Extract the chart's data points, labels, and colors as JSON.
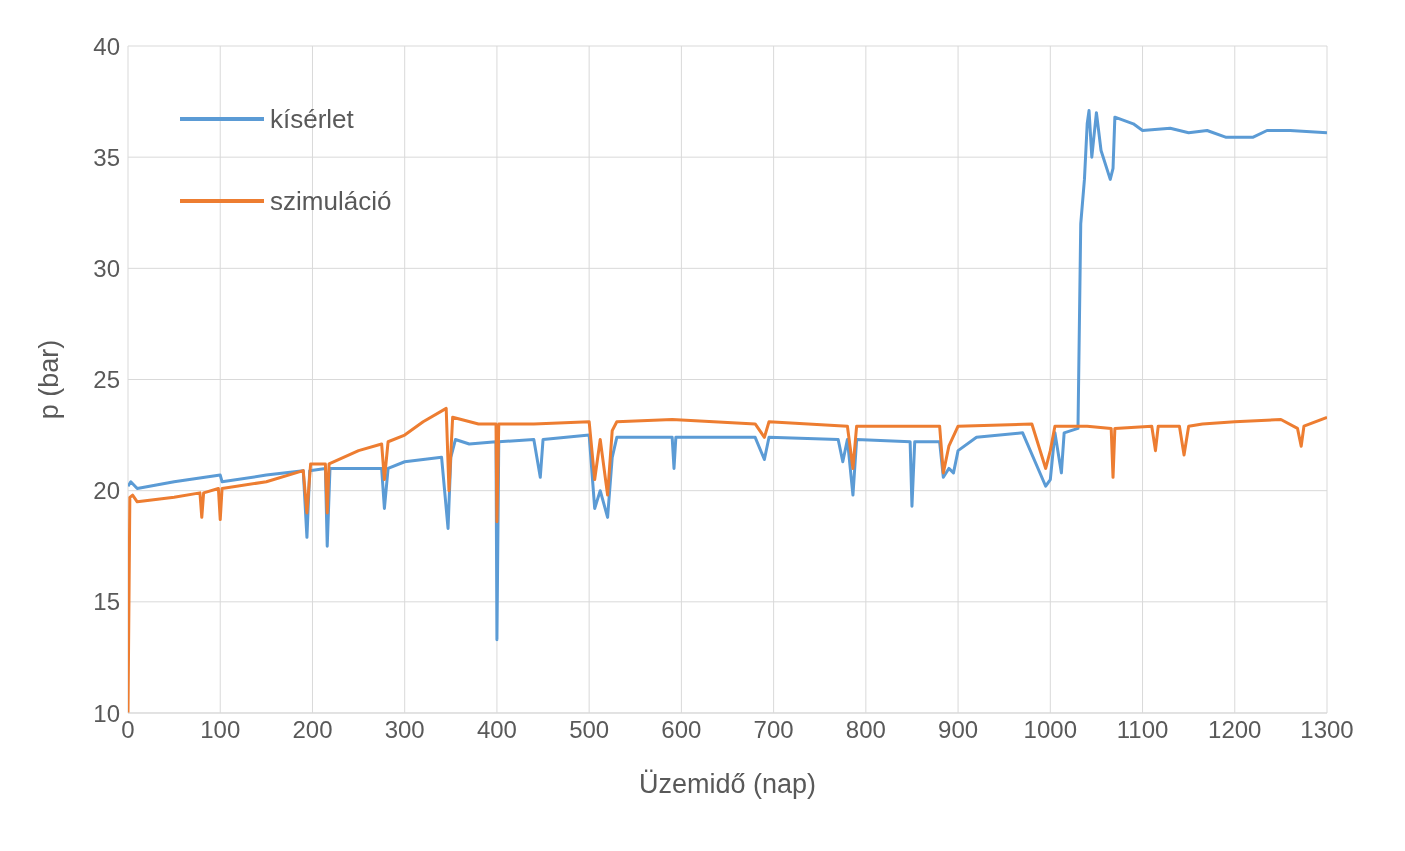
{
  "chart_data": {
    "type": "line",
    "xlabel": "Üzemidő (nap)",
    "ylabel": "p (bar)",
    "xlim": [
      0,
      1300
    ],
    "xticks": [
      0,
      100,
      200,
      300,
      400,
      500,
      600,
      700,
      800,
      900,
      1000,
      1100,
      1200,
      1300
    ],
    "ylim": [
      10,
      40
    ],
    "yticks": [
      10,
      15,
      20,
      25,
      30,
      35,
      40
    ],
    "grid": true,
    "legend": "top left",
    "marker": "none",
    "line_style": "solid",
    "series": [
      {
        "name": "kísérlet",
        "color": "#5b9bd5",
        "x": [
          0,
          3,
          10,
          50,
          100,
          102,
          150,
          190,
          194,
          197,
          214,
          216,
          219,
          260,
          275,
          278,
          282,
          300,
          340,
          347,
          350,
          355,
          370,
          399,
          400,
          402,
          440,
          447,
          450,
          500,
          506,
          512,
          520,
          525,
          530,
          590,
          592,
          594,
          680,
          690,
          695,
          770,
          775,
          780,
          786,
          790,
          848,
          850,
          853,
          880,
          884,
          890,
          895,
          900,
          920,
          970,
          995,
          1000,
          1005,
          1012,
          1015,
          1030,
          1033,
          1037,
          1040,
          1042,
          1045,
          1050,
          1055,
          1065,
          1068,
          1070,
          1090,
          1100,
          1130,
          1150,
          1170,
          1190,
          1220,
          1235,
          1260,
          1300
        ],
        "values": [
          20.2,
          20.4,
          20.1,
          20.4,
          20.7,
          20.4,
          20.7,
          20.9,
          17.9,
          20.9,
          21.0,
          17.5,
          21.0,
          21.0,
          21.0,
          19.2,
          21.0,
          21.3,
          21.5,
          18.3,
          21.5,
          22.3,
          22.1,
          22.2,
          13.3,
          22.2,
          22.3,
          20.6,
          22.3,
          22.5,
          19.2,
          20.0,
          18.8,
          21.5,
          22.4,
          22.4,
          21.0,
          22.4,
          22.4,
          21.4,
          22.4,
          22.3,
          21.3,
          22.3,
          19.8,
          22.3,
          22.2,
          19.3,
          22.2,
          22.2,
          20.6,
          21.0,
          20.8,
          21.8,
          22.4,
          22.6,
          20.2,
          20.5,
          22.6,
          20.8,
          22.6,
          22.8,
          32.0,
          34.0,
          36.5,
          37.1,
          35.0,
          37.0,
          35.3,
          34.0,
          34.5,
          36.8,
          36.5,
          36.2,
          36.3,
          36.1,
          36.2,
          35.9,
          35.9,
          36.2,
          36.2,
          36.1
        ]
      },
      {
        "name": "szimuláció",
        "color": "#ed7d31",
        "x": [
          0,
          2,
          5,
          10,
          50,
          78,
          80,
          82,
          98,
          100,
          102,
          150,
          190,
          194,
          198,
          214,
          216,
          218,
          250,
          275,
          278,
          282,
          300,
          320,
          345,
          348,
          352,
          380,
          399,
          400,
          402,
          440,
          500,
          506,
          512,
          520,
          525,
          530,
          590,
          680,
          690,
          695,
          780,
          786,
          790,
          880,
          884,
          890,
          900,
          980,
          995,
          1000,
          1005,
          1040,
          1066,
          1068,
          1070,
          1110,
          1114,
          1117,
          1140,
          1145,
          1150,
          1165,
          1200,
          1250,
          1268,
          1272,
          1275,
          1300
        ],
        "values": [
          10.0,
          19.7,
          19.8,
          19.5,
          19.7,
          19.9,
          18.8,
          19.9,
          20.1,
          18.7,
          20.1,
          20.4,
          20.9,
          19.0,
          21.2,
          21.2,
          19.0,
          21.2,
          21.8,
          22.1,
          20.5,
          22.2,
          22.5,
          23.1,
          23.7,
          20.0,
          23.3,
          23.0,
          23.0,
          18.6,
          23.0,
          23.0,
          23.1,
          20.5,
          22.3,
          19.8,
          22.7,
          23.1,
          23.2,
          23.0,
          22.4,
          23.1,
          22.9,
          21.0,
          22.9,
          22.9,
          20.8,
          22.0,
          22.9,
          23.0,
          21.0,
          21.8,
          22.9,
          22.9,
          22.8,
          20.6,
          22.8,
          22.9,
          21.8,
          22.9,
          22.9,
          21.6,
          22.9,
          23.0,
          23.1,
          23.2,
          22.8,
          22.0,
          22.9,
          23.3
        ]
      }
    ]
  }
}
